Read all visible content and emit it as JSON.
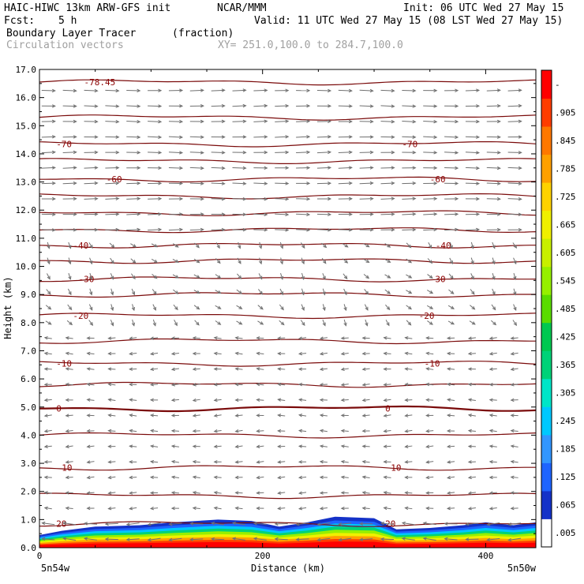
{
  "header": {
    "model": "HAIC-HIWC 13km ARW-GFS init",
    "org": "NCAR/MMM",
    "init": "Init: 06 UTC Wed 27 May 15",
    "fcst_label": "Fcst:",
    "fcst_value": "5 h",
    "valid": "Valid: 11 UTC Wed 27 May 15 (08 LST Wed 27 May 15)",
    "field": "Boundary Layer Tracer",
    "field_units": "(fraction)",
    "vectors": "Circulation vectors",
    "xy": "XY= 251.0,100.0 to 284.7,100.0"
  },
  "chart_data": {
    "type": "heatmap",
    "title": "Boundary Layer Tracer (fraction)",
    "xlabel": "Distance (km)",
    "ylabel": "Height (km)",
    "xlim": [
      0,
      445
    ],
    "ylim": [
      0,
      17
    ],
    "x_ticks": [
      "0",
      "200",
      "400"
    ],
    "y_ticks": [
      "0.0",
      "1.0",
      "2.0",
      "3.0",
      "4.0",
      "5.0",
      "6.0",
      "7.0",
      "8.0",
      "9.0",
      "10.0",
      "11.0",
      "12.0",
      "13.0",
      "14.0",
      "15.0",
      "16.0",
      "17.0"
    ],
    "x_end_labels": {
      "left": "5n54w",
      "right": "5n50w"
    },
    "tracer_top_km": [
      [
        0,
        0.45
      ],
      [
        20,
        0.6
      ],
      [
        50,
        0.75
      ],
      [
        90,
        0.8
      ],
      [
        120,
        0.9
      ],
      [
        160,
        1.0
      ],
      [
        190,
        0.95
      ],
      [
        215,
        0.75
      ],
      [
        240,
        0.9
      ],
      [
        265,
        1.1
      ],
      [
        300,
        1.05
      ],
      [
        320,
        0.65
      ],
      [
        350,
        0.7
      ],
      [
        380,
        0.8
      ],
      [
        400,
        0.9
      ],
      [
        425,
        0.8
      ],
      [
        445,
        0.9
      ]
    ],
    "temperature_contours": [
      {
        "label": "-78.45",
        "height_km": 16.55,
        "labels_x": [
          40
        ]
      },
      {
        "label": "-70",
        "height_km": 14.35,
        "labels_x": [
          15,
          325
        ]
      },
      {
        "label": "-60",
        "height_km": 13.1,
        "labels_x": [
          60,
          350
        ]
      },
      {
        "label": "-40",
        "height_km": 10.75,
        "labels_x": [
          30,
          355
        ]
      },
      {
        "label": "-30",
        "height_km": 9.55,
        "labels_x": [
          35,
          350
        ]
      },
      {
        "label": "-20",
        "height_km": 8.25,
        "labels_x": [
          30,
          340
        ]
      },
      {
        "label": "-10",
        "height_km": 6.55,
        "labels_x": [
          15,
          345
        ]
      },
      {
        "label": "0",
        "height_km": 4.95,
        "labels_x": [
          15,
          310
        ]
      },
      {
        "label": "10",
        "height_km": 2.85,
        "labels_x": [
          20,
          315
        ]
      },
      {
        "label": "20",
        "height_km": 0.85,
        "labels_x": [
          15,
          310
        ]
      }
    ],
    "extra_contour_heights_km": [
      15.3,
      13.75,
      12.5,
      11.9,
      11.3,
      10.2,
      9.0,
      7.35,
      5.8,
      4.0,
      1.85
    ],
    "colorbar": {
      "labels": [
        ".005",
        ".065",
        ".125",
        ".185",
        ".245",
        ".305",
        ".365",
        ".425",
        ".485",
        ".545",
        ".605",
        ".665",
        ".725",
        ".785",
        ".845",
        ".905",
        "-"
      ],
      "colors": [
        "#ffffff",
        "#1432c8",
        "#1e64ff",
        "#3296ff",
        "#00c8ff",
        "#00e6c8",
        "#00d278",
        "#00c850",
        "#5adc00",
        "#96f000",
        "#c8f000",
        "#f0f000",
        "#ffd200",
        "#ffa000",
        "#ff7800",
        "#ff3c00",
        "#ff0000"
      ]
    },
    "vector_rows": {
      "upper_direction": "east",
      "lower_direction": "west",
      "transition_km": 9
    }
  }
}
